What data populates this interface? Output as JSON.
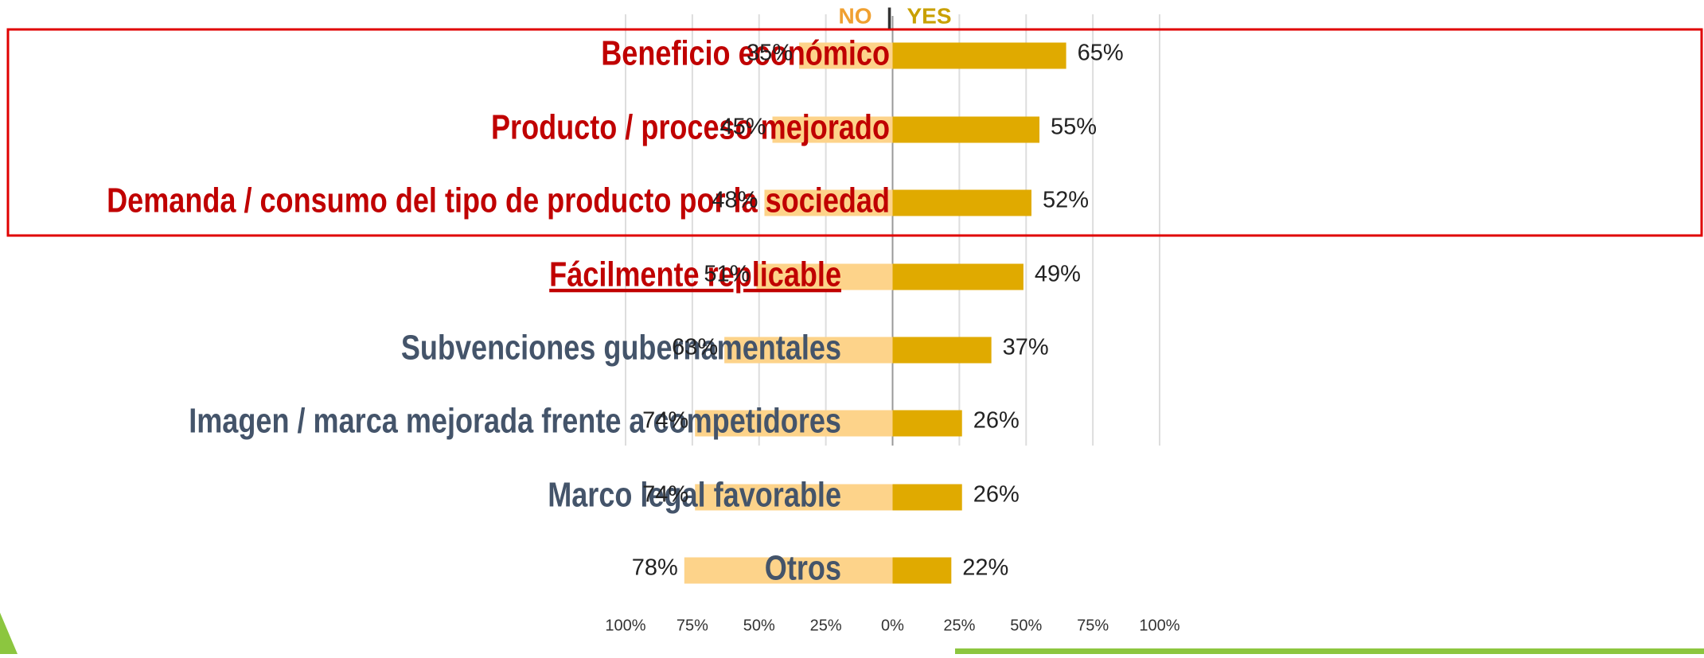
{
  "chart_data": {
    "type": "diverging_bar",
    "categories": [
      "Beneficio económico",
      "Producto / proceso mejorado",
      "Demanda / consumo del tipo de producto por la sociedad",
      "Fácilmente replicable",
      "Subvenciones gubernamentales",
      "Imagen / marca mejorada frente a competidores",
      "Marco legal favorable",
      "Otros"
    ],
    "category_colors": [
      "#c00000",
      "#c00000",
      "#c00000",
      "#c00000",
      "#44546a",
      "#44546a",
      "#44546a",
      "#44546a"
    ],
    "category_underline": [
      false,
      false,
      false,
      true,
      false,
      false,
      false,
      false
    ],
    "legend_separator": "|",
    "series": [
      {
        "name": "NO",
        "color": "#fdd38a",
        "label_color": "#f0a030",
        "values": [
          -35,
          -45,
          -48,
          -51,
          -63,
          -74,
          -74,
          -78
        ],
        "value_labels": [
          "35%",
          "45%",
          "48%",
          "51%",
          "63%",
          "74%",
          "74%",
          "78%"
        ]
      },
      {
        "name": "YES",
        "color": "#e0aa00",
        "label_color": "#c9a000",
        "values": [
          65,
          55,
          52,
          49,
          37,
          26,
          26,
          22
        ],
        "value_labels": [
          "65%",
          "55%",
          "52%",
          "49%",
          "37%",
          "26%",
          "26%",
          "22%"
        ]
      }
    ],
    "xlim": [
      -100,
      100
    ],
    "xticks": [
      {
        "value": -100,
        "label": "100%"
      },
      {
        "value": -75,
        "label": "75%"
      },
      {
        "value": -50,
        "label": "50%"
      },
      {
        "value": -25,
        "label": "25%"
      },
      {
        "value": 0,
        "label": "0%"
      },
      {
        "value": 25,
        "label": "25%"
      },
      {
        "value": 50,
        "label": "50%"
      },
      {
        "value": 75,
        "label": "75%"
      },
      {
        "value": 100,
        "label": "100%"
      }
    ],
    "grid": true
  }
}
